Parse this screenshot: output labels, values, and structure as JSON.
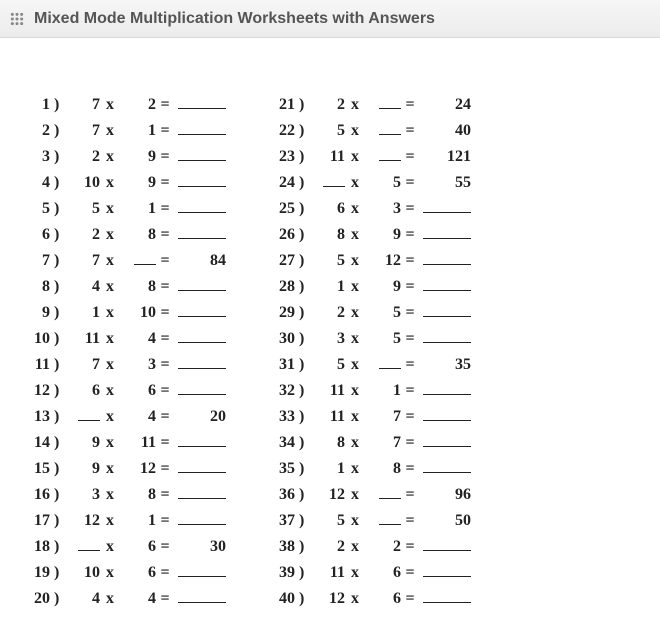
{
  "title": "Mixed Mode Multiplication Worksheets with Answers",
  "colors": {
    "titlebar_bg_top": "#f6f6f6",
    "titlebar_bg_bottom": "#ececec",
    "titlebar_border": "#d8d8d8",
    "titlebar_text": "#555555",
    "text": "#222222",
    "blank_line": "#222222",
    "background": "#ffffff"
  },
  "typography": {
    "title_family": "Segoe UI, Helvetica Neue, Arial, sans-serif",
    "title_size_pt": 12,
    "title_weight": 600,
    "body_family": "Georgia, Times New Roman, serif",
    "body_size_pt": 12,
    "body_weight": 700
  },
  "operator": "x",
  "equals": "=",
  "paren": ")",
  "problems_left": [
    {
      "n": 1,
      "a": 7,
      "b": 2,
      "c": null
    },
    {
      "n": 2,
      "a": 7,
      "b": 1,
      "c": null
    },
    {
      "n": 3,
      "a": 2,
      "b": 9,
      "c": null
    },
    {
      "n": 4,
      "a": 10,
      "b": 9,
      "c": null
    },
    {
      "n": 5,
      "a": 5,
      "b": 1,
      "c": null
    },
    {
      "n": 6,
      "a": 2,
      "b": 8,
      "c": null
    },
    {
      "n": 7,
      "a": 7,
      "b": null,
      "c": 84
    },
    {
      "n": 8,
      "a": 4,
      "b": 8,
      "c": null
    },
    {
      "n": 9,
      "a": 1,
      "b": 10,
      "c": null
    },
    {
      "n": 10,
      "a": 11,
      "b": 4,
      "c": null
    },
    {
      "n": 11,
      "a": 7,
      "b": 3,
      "c": null
    },
    {
      "n": 12,
      "a": 6,
      "b": 6,
      "c": null
    },
    {
      "n": 13,
      "a": null,
      "b": 4,
      "c": 20
    },
    {
      "n": 14,
      "a": 9,
      "b": 11,
      "c": null
    },
    {
      "n": 15,
      "a": 9,
      "b": 12,
      "c": null
    },
    {
      "n": 16,
      "a": 3,
      "b": 8,
      "c": null
    },
    {
      "n": 17,
      "a": 12,
      "b": 1,
      "c": null
    },
    {
      "n": 18,
      "a": null,
      "b": 6,
      "c": 30
    },
    {
      "n": 19,
      "a": 10,
      "b": 6,
      "c": null
    },
    {
      "n": 20,
      "a": 4,
      "b": 4,
      "c": null
    }
  ],
  "problems_right": [
    {
      "n": 21,
      "a": 2,
      "b": null,
      "c": 24
    },
    {
      "n": 22,
      "a": 5,
      "b": null,
      "c": 40
    },
    {
      "n": 23,
      "a": 11,
      "b": null,
      "c": 121
    },
    {
      "n": 24,
      "a": null,
      "b": 5,
      "c": 55
    },
    {
      "n": 25,
      "a": 6,
      "b": 3,
      "c": null
    },
    {
      "n": 26,
      "a": 8,
      "b": 9,
      "c": null
    },
    {
      "n": 27,
      "a": 5,
      "b": 12,
      "c": null
    },
    {
      "n": 28,
      "a": 1,
      "b": 9,
      "c": null
    },
    {
      "n": 29,
      "a": 2,
      "b": 5,
      "c": null
    },
    {
      "n": 30,
      "a": 3,
      "b": 5,
      "c": null
    },
    {
      "n": 31,
      "a": 5,
      "b": null,
      "c": 35
    },
    {
      "n": 32,
      "a": 11,
      "b": 1,
      "c": null
    },
    {
      "n": 33,
      "a": 11,
      "b": 7,
      "c": null
    },
    {
      "n": 34,
      "a": 8,
      "b": 7,
      "c": null
    },
    {
      "n": 35,
      "a": 1,
      "b": 8,
      "c": null
    },
    {
      "n": 36,
      "a": 12,
      "b": null,
      "c": 96
    },
    {
      "n": 37,
      "a": 5,
      "b": null,
      "c": 50
    },
    {
      "n": 38,
      "a": 2,
      "b": 2,
      "c": null
    },
    {
      "n": 39,
      "a": 11,
      "b": 6,
      "c": null
    },
    {
      "n": 40,
      "a": 12,
      "b": 6,
      "c": null
    }
  ]
}
